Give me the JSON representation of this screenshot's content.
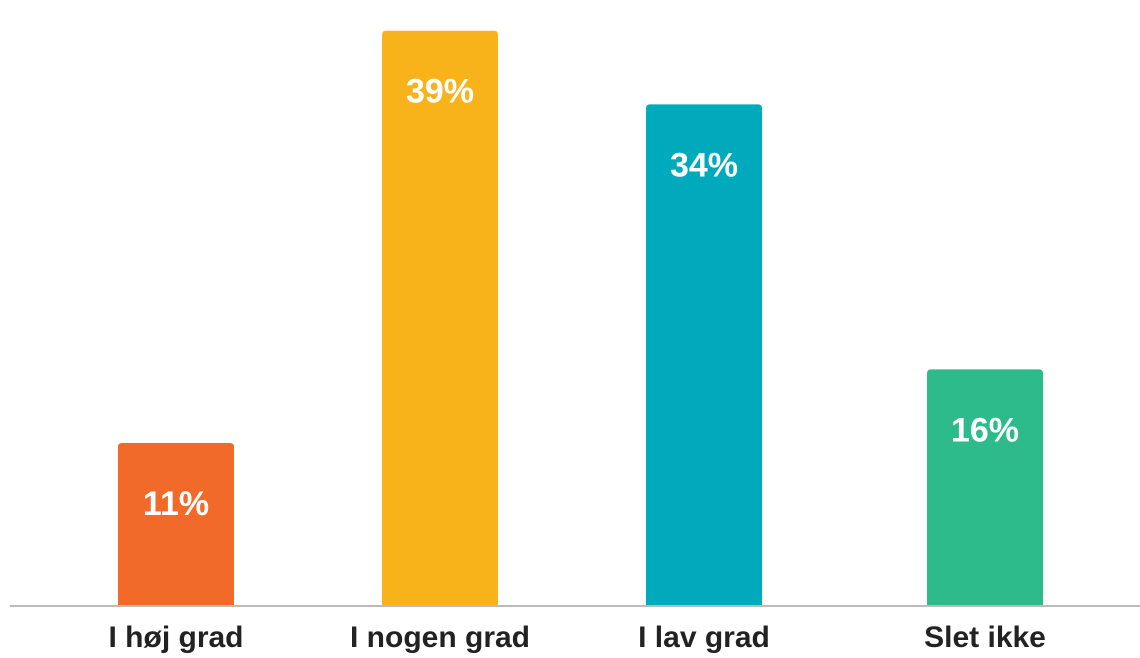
{
  "chart_data": {
    "type": "bar",
    "categories": [
      "I høj grad",
      "I nogen grad",
      "I lav grad",
      "Slet ikke"
    ],
    "values": [
      11,
      39,
      34,
      16
    ],
    "value_suffix": "%",
    "colors": [
      "#F26A2A",
      "#F8B31B",
      "#00AABD",
      "#2EBB8C"
    ],
    "axis_color": "#BBBBBB",
    "ylim": [
      0,
      40
    ],
    "grid": false,
    "legend": "none",
    "title": "",
    "xlabel": "",
    "ylabel": ""
  }
}
